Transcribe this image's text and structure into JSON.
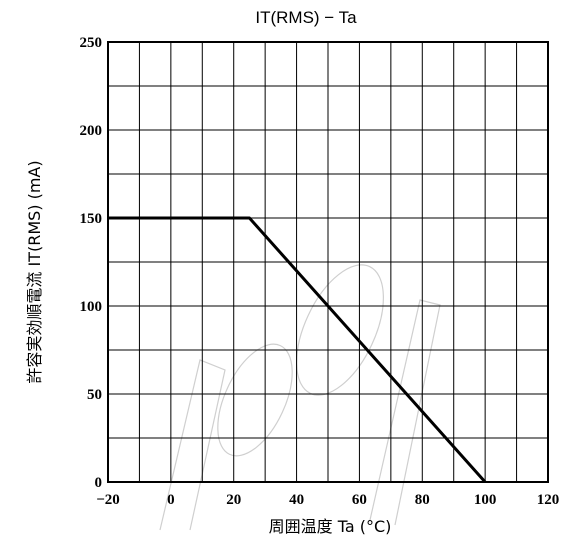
{
  "chart_data": {
    "type": "line",
    "title": "IT(RMS) − Ta",
    "xlabel": "周囲温度 Ta (°C)",
    "ylabel": "許容実効順電流 IT(RMS) (mA)",
    "xlim": [
      -20,
      120
    ],
    "ylim": [
      0,
      250
    ],
    "x_ticks": [
      -20,
      0,
      20,
      40,
      60,
      80,
      100,
      120
    ],
    "y_ticks": [
      0,
      50,
      100,
      150,
      200,
      250
    ],
    "x_tick_labels": [
      "−20",
      "0",
      "20",
      "40",
      "60",
      "80",
      "100",
      "120"
    ],
    "y_tick_labels": [
      "0",
      "50",
      "100",
      "150",
      "200",
      "250"
    ],
    "x_grid_step": 10,
    "y_grid_step": 25,
    "grid": true,
    "series": [
      {
        "x": [
          -20,
          25,
          100
        ],
        "y": [
          150,
          150,
          0
        ]
      }
    ]
  }
}
